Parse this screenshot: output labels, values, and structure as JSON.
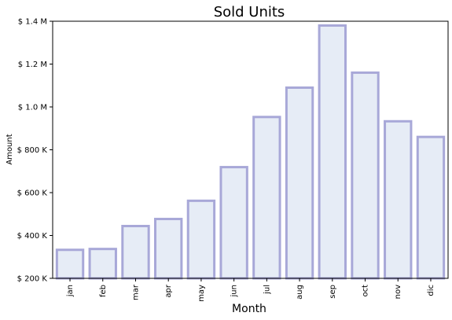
{
  "chart_data": {
    "type": "bar",
    "title": "Sold Units",
    "xlabel": "Month",
    "ylabel": "Amount",
    "categories": [
      "jan",
      "feb",
      "mar",
      "apr",
      "may",
      "jun",
      "jul",
      "aug",
      "sep",
      "oct",
      "nov",
      "dic"
    ],
    "values": [
      333000,
      337000,
      444000,
      477000,
      562000,
      719000,
      953000,
      1090000,
      1380000,
      1160000,
      933000,
      860000
    ],
    "ylim": [
      200000,
      1400000
    ],
    "yticks": [
      200000,
      400000,
      600000,
      800000,
      1000000,
      1200000,
      1400000
    ],
    "ytick_labels": [
      "$ 200 K",
      "$ 400 K",
      "$ 600 K",
      "$ 800 K",
      "$ 1.0 M",
      "$ 1.2 M",
      "$ 1.4 M"
    ],
    "grid": false,
    "colors": {
      "bar_fill": "#e6ecf6",
      "bar_edge": "#a8a8d8",
      "axis": "#000000"
    }
  }
}
